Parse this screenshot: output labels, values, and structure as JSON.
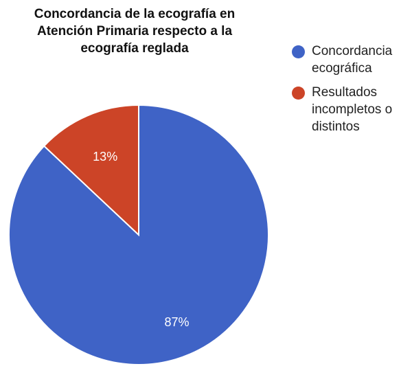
{
  "chart_data": {
    "type": "pie",
    "title": "Concordancia de la ecografía en Atención Primaria respecto a la ecografía reglada",
    "title_lines": [
      "Concordancia de la ecografía en",
      "Atención Primaria respecto a la",
      "ecografía reglada"
    ],
    "categories": [
      "Concordancia ecográfica",
      "Resultados incompletos o distintos"
    ],
    "values": [
      87,
      13
    ],
    "value_labels": [
      "87%",
      "13%"
    ],
    "colors": [
      "#3f63c6",
      "#cc4427"
    ],
    "legend": {
      "placement": "right",
      "entries": [
        {
          "label_lines": [
            "Concordancia",
            "ecográfica"
          ]
        },
        {
          "label_lines": [
            "Resultados",
            "incompletos o",
            "distintos"
          ]
        }
      ]
    }
  }
}
